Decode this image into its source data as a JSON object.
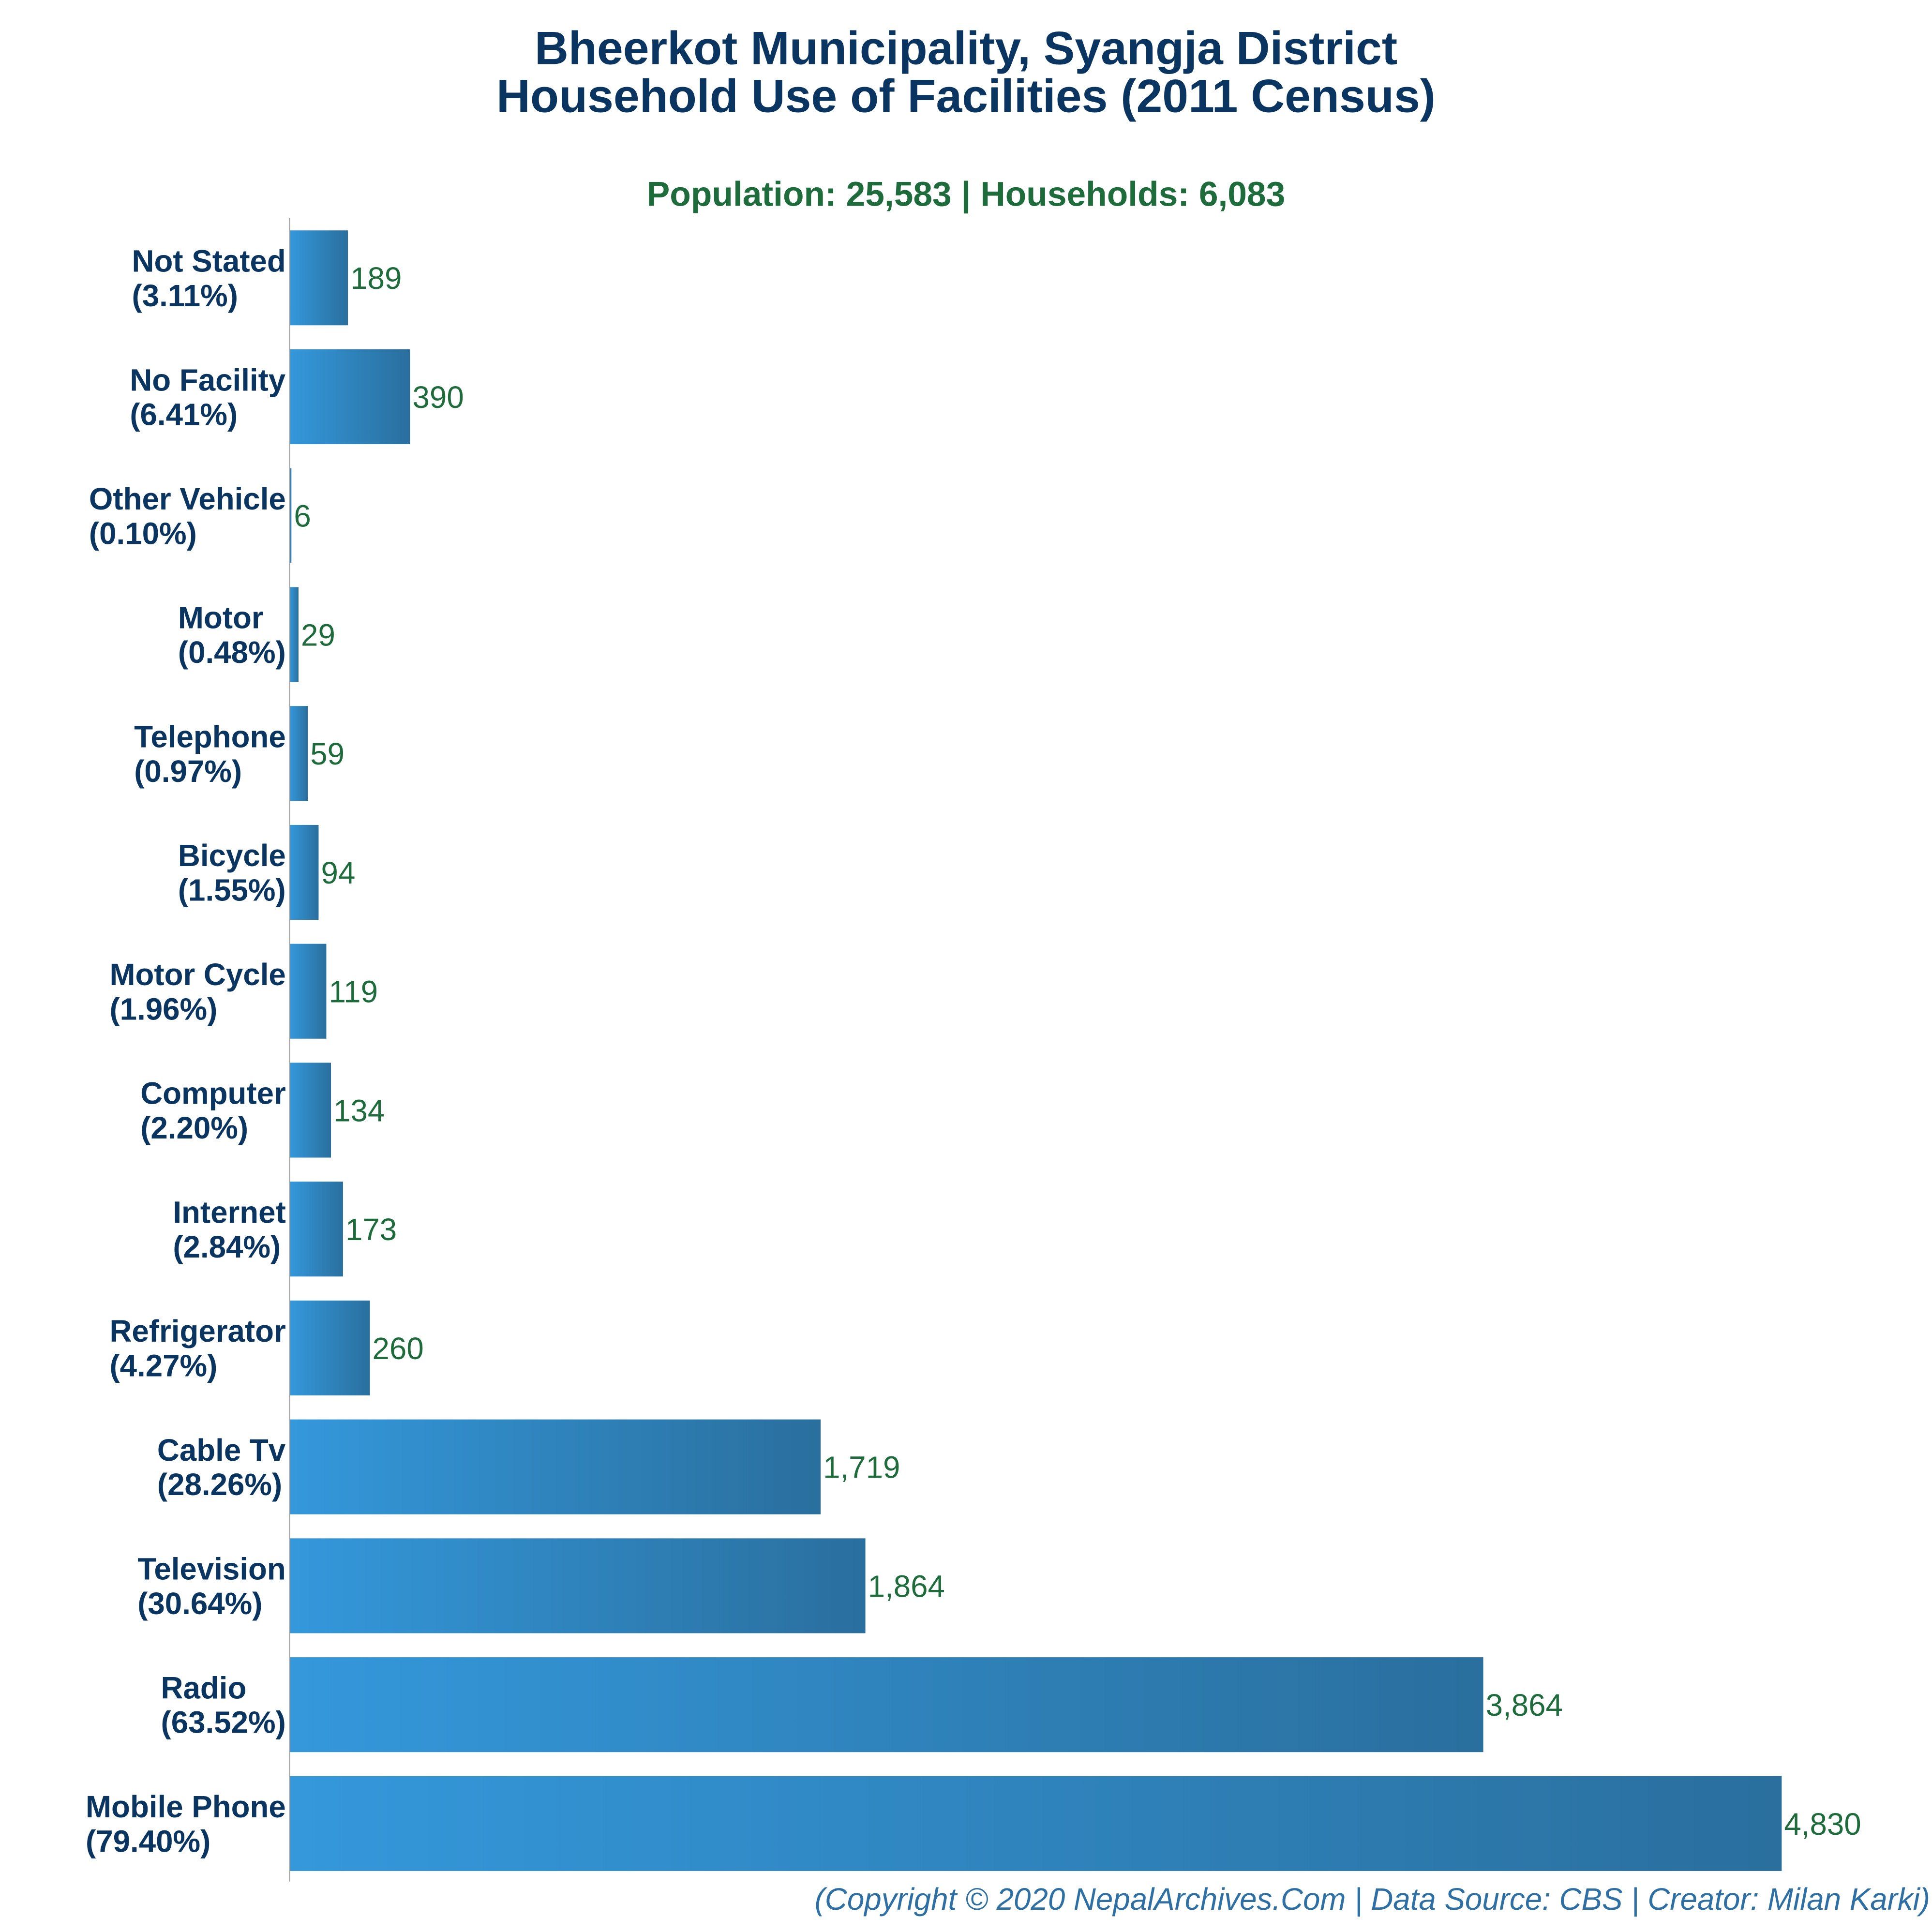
{
  "chart_data": {
    "type": "bar",
    "orientation": "horizontal",
    "title": [
      "Bheerkot Municipality, Syangja District",
      "Household Use of Facilities (2011 Census)"
    ],
    "subtitle": "Population: 25,583 | Households: 6,083",
    "categories": [
      "Not Stated",
      "No Facility",
      "Other Vehicle",
      "Motor",
      "Telephone",
      "Bicycle",
      "Motor Cycle",
      "Computer",
      "Internet",
      "Refrigerator",
      "Cable Tv",
      "Television",
      "Radio",
      "Mobile Phone"
    ],
    "percent_labels": [
      "(3.11%)",
      "(6.41%)",
      "(0.10%)",
      "(0.48%)",
      "(0.97%)",
      "(1.55%)",
      "(1.96%)",
      "(2.20%)",
      "(2.84%)",
      "(4.27%)",
      "(28.26%)",
      "(30.64%)",
      "(63.52%)",
      "(79.40%)"
    ],
    "values": [
      189,
      390,
      6,
      29,
      59,
      94,
      119,
      134,
      173,
      260,
      1719,
      1864,
      3864,
      4830
    ],
    "value_labels": [
      "189",
      "390",
      "6",
      "29",
      "59",
      "94",
      "119",
      "134",
      "173",
      "260",
      "1,719",
      "1,864",
      "3,864",
      "4,830"
    ],
    "xlim": [
      0,
      4830
    ],
    "grid": false,
    "legend": "none",
    "colors": {
      "bar_start": "#3498db",
      "bar_end": "#2a6f9e",
      "title": "#0b3561",
      "subtitle": "#1e6b3c",
      "value_text": "#1e6b3c",
      "category_text": "#0b3561",
      "footer": "#2e6fa4",
      "axis": "#a9a9a9"
    },
    "footer": "(Copyright © 2020 NepalArchives.Com | Data Source: CBS | Creator: Milan Karki)"
  }
}
